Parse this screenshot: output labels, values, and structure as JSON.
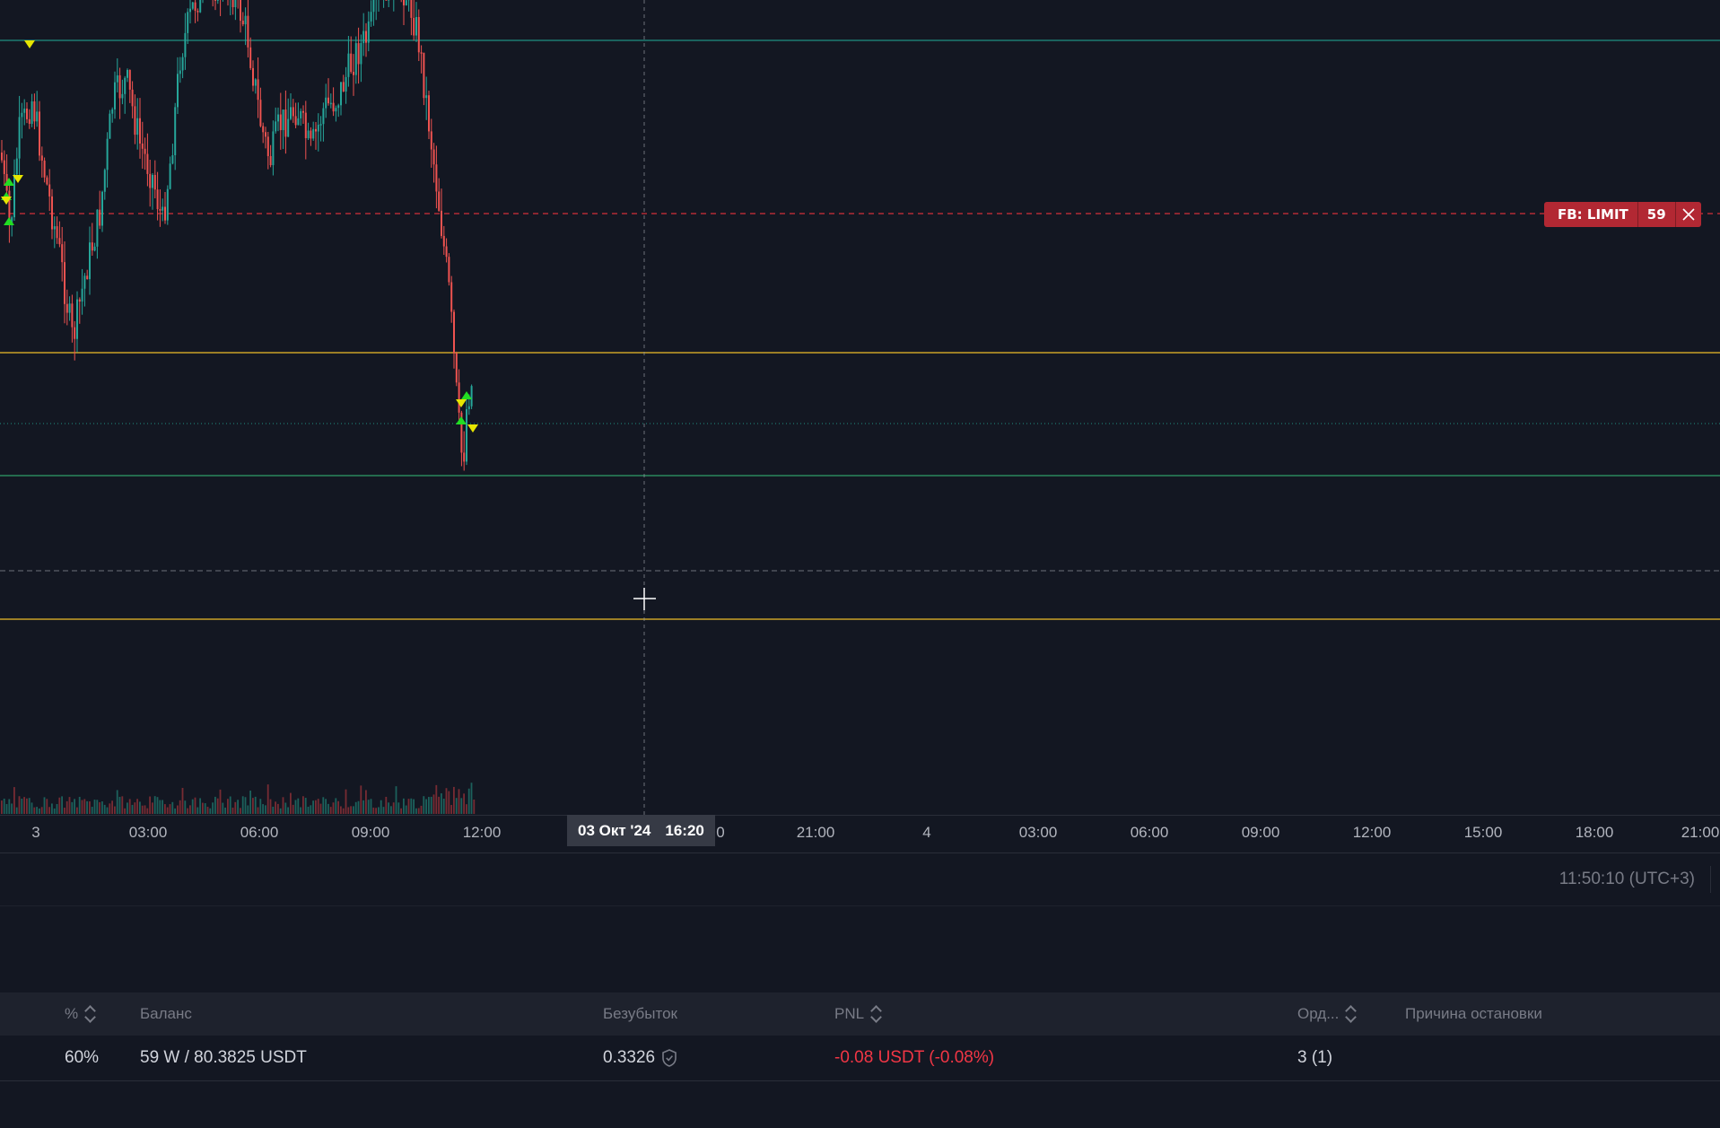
{
  "chart": {
    "time_axis_labels": [
      "3",
      "03:00",
      "06:00",
      "09:00",
      "12:00",
      "0",
      "21:00",
      "4",
      "03:00",
      "06:00",
      "09:00",
      "12:00",
      "15:00",
      "18:00",
      "21:00"
    ],
    "crosshair": {
      "date": "03 Окт '24",
      "time": "16:20"
    },
    "order_line": {
      "label": "FB: LIMIT",
      "quantity": "59",
      "color": "#b22833"
    },
    "colors": {
      "up": "#26a69a",
      "down": "#ef5350",
      "level_yellow": "#c9a227",
      "level_teal": "#1f8f82",
      "level_green": "#2e9e6a",
      "order_red": "#d32f3a"
    }
  },
  "status": {
    "clock": "11:50:10 (UTC+3)"
  },
  "table": {
    "headers": {
      "percent": "%",
      "balance": "Баланс",
      "breakeven": "Безубыток",
      "pnl": "PNL",
      "orders": "Орд...",
      "stop_reason": "Причина остановки"
    },
    "row": {
      "percent": "60%",
      "balance": "59 W / 80.3825 USDT",
      "breakeven": "0.3326",
      "pnl": "-0.08 USDT (-0.08%)",
      "orders": "3 (1)",
      "stop_reason": ""
    }
  }
}
